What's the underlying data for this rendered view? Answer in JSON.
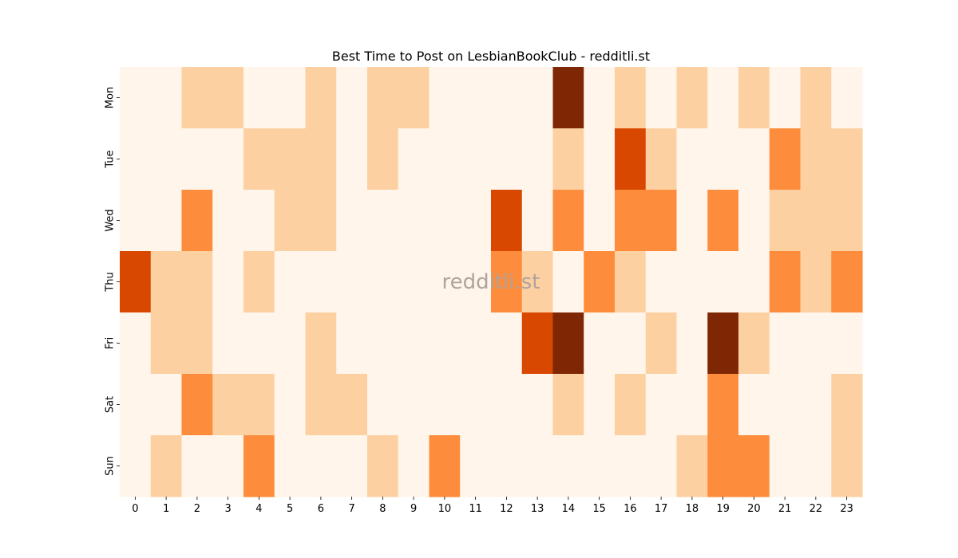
{
  "chart_data": {
    "type": "heatmap",
    "title": "Best Time to Post on LesbianBookClub - redditli.st",
    "watermark": "redditli.st",
    "x_labels": [
      "0",
      "1",
      "2",
      "3",
      "4",
      "5",
      "6",
      "7",
      "8",
      "9",
      "10",
      "11",
      "12",
      "13",
      "14",
      "15",
      "16",
      "17",
      "18",
      "19",
      "20",
      "21",
      "22",
      "23"
    ],
    "y_labels": [
      "Mon",
      "Tue",
      "Wed",
      "Thu",
      "Fri",
      "Sat",
      "Sun"
    ],
    "values": [
      [
        0,
        0,
        1,
        1,
        0,
        0,
        1,
        0,
        1,
        1,
        0,
        0,
        0,
        0,
        4,
        0,
        1,
        0,
        1,
        0,
        1,
        0,
        1,
        0
      ],
      [
        0,
        0,
        0,
        0,
        1,
        1,
        1,
        0,
        1,
        0,
        0,
        0,
        0,
        0,
        1,
        0,
        3,
        1,
        0,
        0,
        0,
        2,
        1,
        1
      ],
      [
        0,
        0,
        2,
        0,
        0,
        1,
        1,
        0,
        0,
        0,
        0,
        0,
        3,
        0,
        2,
        0,
        2,
        2,
        0,
        2,
        0,
        1,
        1,
        1
      ],
      [
        3,
        1,
        1,
        0,
        1,
        0,
        0,
        0,
        0,
        0,
        0,
        0,
        2,
        1,
        0,
        2,
        1,
        0,
        0,
        0,
        0,
        2,
        1,
        2
      ],
      [
        0,
        1,
        1,
        0,
        0,
        0,
        1,
        0,
        0,
        0,
        0,
        0,
        0,
        3,
        4,
        0,
        0,
        1,
        0,
        4,
        1,
        0,
        0,
        0
      ],
      [
        0,
        0,
        2,
        1,
        1,
        0,
        1,
        1,
        0,
        0,
        0,
        0,
        0,
        0,
        1,
        0,
        1,
        0,
        0,
        2,
        0,
        0,
        0,
        1
      ],
      [
        0,
        1,
        0,
        0,
        2,
        0,
        0,
        0,
        1,
        0,
        2,
        0,
        0,
        0,
        0,
        0,
        0,
        0,
        1,
        2,
        2,
        0,
        0,
        1
      ]
    ],
    "colors": [
      "#fff5eb",
      "#fdd0a2",
      "#fd8d3c",
      "#d94801",
      "#7f2704"
    ],
    "colorbar": false
  }
}
